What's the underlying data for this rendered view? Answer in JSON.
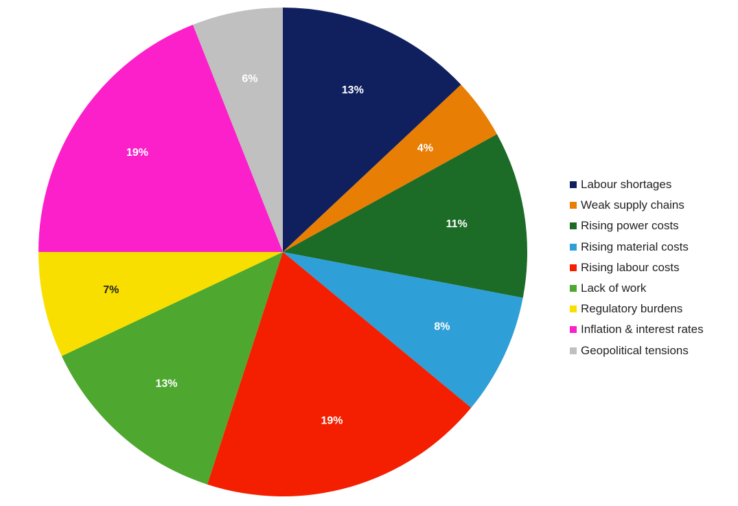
{
  "chart_data": {
    "type": "pie",
    "title": "",
    "start_angle_deg": 0,
    "direction": "clockwise",
    "legend_position": "right",
    "slices": [
      {
        "label": "Labour shortages",
        "value": 13,
        "value_label": "13%",
        "color": "#10205e",
        "label_color": "#ffffff"
      },
      {
        "label": "Weak supply chains",
        "value": 4,
        "value_label": "4%",
        "color": "#e87e04",
        "label_color": "#ffffff"
      },
      {
        "label": "Rising power costs",
        "value": 11,
        "value_label": "11%",
        "color": "#1c6b27",
        "label_color": "#ffffff"
      },
      {
        "label": "Rising material costs",
        "value": 8,
        "value_label": "8%",
        "color": "#2f9fd7",
        "label_color": "#ffffff"
      },
      {
        "label": "Rising labour costs",
        "value": 19,
        "value_label": "19%",
        "color": "#f41f00",
        "label_color": "#ffffff"
      },
      {
        "label": "Lack of work",
        "value": 13,
        "value_label": "13%",
        "color": "#4ea72e",
        "label_color": "#ffffff"
      },
      {
        "label": "Regulatory burdens",
        "value": 7,
        "value_label": "7%",
        "color": "#f9df00",
        "label_color": "#222222"
      },
      {
        "label": "Inflation & interest rates",
        "value": 19,
        "value_label": "19%",
        "color": "#fb20c9",
        "label_color": "#ffffff"
      },
      {
        "label": "Geopolitical tensions",
        "value": 6,
        "value_label": "6%",
        "color": "#c0c0c0",
        "label_color": "#ffffff"
      }
    ]
  }
}
